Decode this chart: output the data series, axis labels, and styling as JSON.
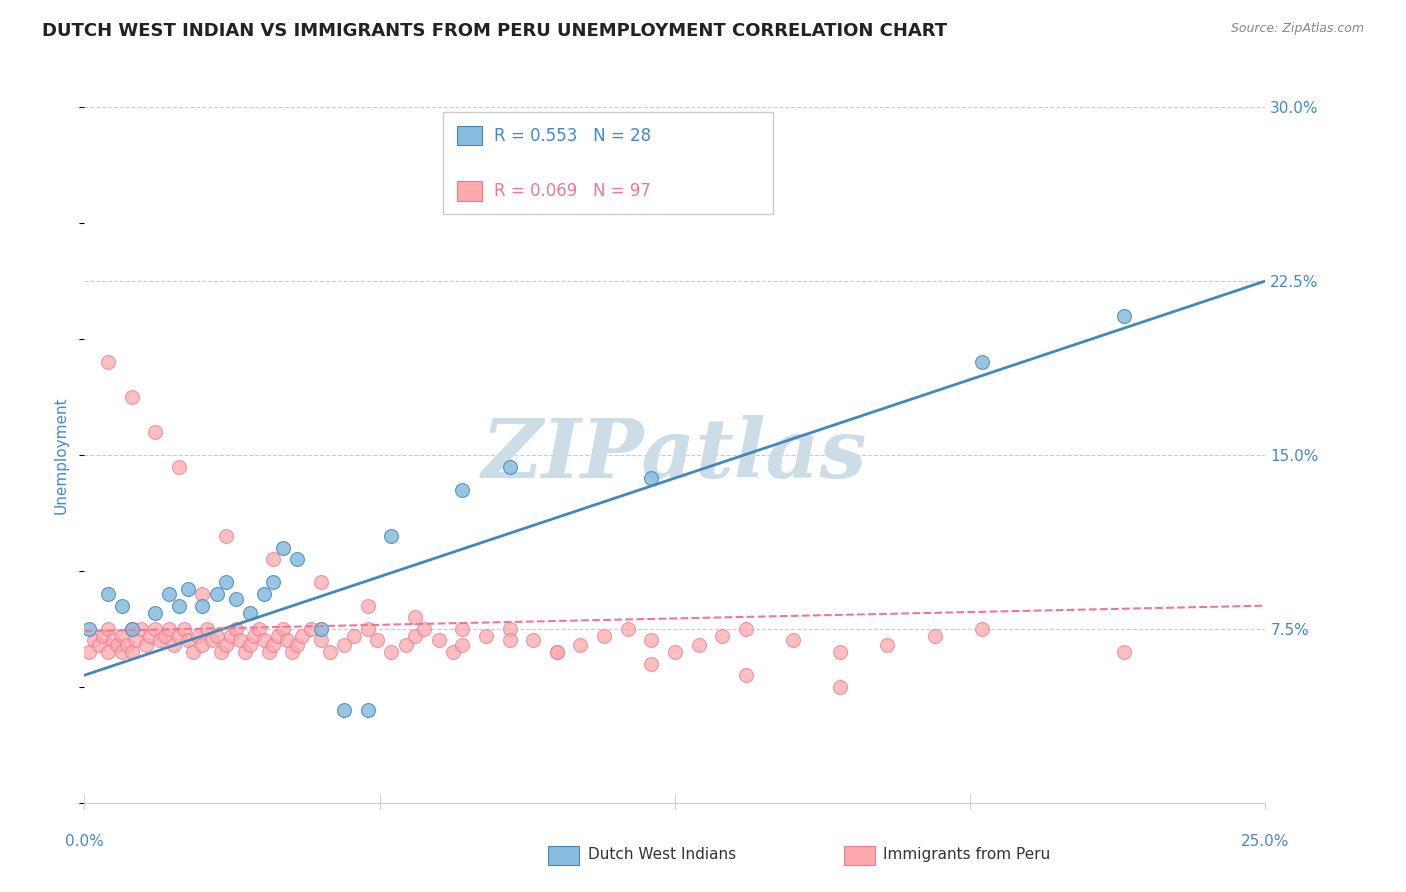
{
  "title": "DUTCH WEST INDIAN VS IMMIGRANTS FROM PERU UNEMPLOYMENT CORRELATION CHART",
  "source": "Source: ZipAtlas.com",
  "ylabel": "Unemployment",
  "yticks": [
    0.0,
    0.075,
    0.15,
    0.225,
    0.3
  ],
  "ytick_labels": [
    "",
    "7.5%",
    "15.0%",
    "22.5%",
    "30.0%"
  ],
  "xmin": 0.0,
  "xmax": 0.25,
  "ymin": 0.0,
  "ymax": 0.3,
  "color_blue": "#88BBDD",
  "color_pink": "#FFAAAA",
  "color_blue_dark": "#4488BB",
  "color_pink_dark": "#EE7799",
  "color_axis_label": "#4488CC",
  "watermark_color": "#CCDDE8",
  "grid_color": "#CCCCCC",
  "blue_scatter_x": [
    0.001,
    0.005,
    0.008,
    0.01,
    0.015,
    0.018,
    0.02,
    0.022,
    0.025,
    0.028,
    0.03,
    0.032,
    0.035,
    0.038,
    0.04,
    0.042,
    0.045,
    0.05,
    0.055,
    0.06,
    0.065,
    0.08,
    0.09,
    0.12,
    0.19,
    0.22
  ],
  "blue_scatter_y": [
    0.075,
    0.09,
    0.085,
    0.075,
    0.082,
    0.09,
    0.085,
    0.092,
    0.085,
    0.09,
    0.095,
    0.088,
    0.082,
    0.09,
    0.095,
    0.11,
    0.105,
    0.075,
    0.04,
    0.04,
    0.115,
    0.135,
    0.145,
    0.14,
    0.19,
    0.21
  ],
  "pink_scatter_x": [
    0.001,
    0.002,
    0.003,
    0.004,
    0.005,
    0.005,
    0.006,
    0.007,
    0.008,
    0.008,
    0.009,
    0.01,
    0.01,
    0.011,
    0.012,
    0.013,
    0.014,
    0.015,
    0.016,
    0.017,
    0.018,
    0.019,
    0.02,
    0.021,
    0.022,
    0.023,
    0.024,
    0.025,
    0.026,
    0.027,
    0.028,
    0.029,
    0.03,
    0.031,
    0.032,
    0.033,
    0.034,
    0.035,
    0.036,
    0.037,
    0.038,
    0.039,
    0.04,
    0.041,
    0.042,
    0.043,
    0.044,
    0.045,
    0.046,
    0.048,
    0.05,
    0.052,
    0.055,
    0.057,
    0.06,
    0.062,
    0.065,
    0.068,
    0.07,
    0.072,
    0.075,
    0.078,
    0.08,
    0.085,
    0.09,
    0.095,
    0.1,
    0.105,
    0.11,
    0.115,
    0.12,
    0.125,
    0.13,
    0.135,
    0.14,
    0.15,
    0.16,
    0.17,
    0.18,
    0.19,
    0.005,
    0.01,
    0.015,
    0.02,
    0.025,
    0.03,
    0.04,
    0.05,
    0.06,
    0.07,
    0.08,
    0.09,
    0.1,
    0.12,
    0.14,
    0.16,
    0.22
  ],
  "pink_scatter_y": [
    0.065,
    0.07,
    0.068,
    0.072,
    0.065,
    0.075,
    0.07,
    0.068,
    0.065,
    0.072,
    0.068,
    0.065,
    0.075,
    0.07,
    0.075,
    0.068,
    0.072,
    0.075,
    0.07,
    0.072,
    0.075,
    0.068,
    0.072,
    0.075,
    0.07,
    0.065,
    0.072,
    0.068,
    0.075,
    0.07,
    0.072,
    0.065,
    0.068,
    0.072,
    0.075,
    0.07,
    0.065,
    0.068,
    0.072,
    0.075,
    0.07,
    0.065,
    0.068,
    0.072,
    0.075,
    0.07,
    0.065,
    0.068,
    0.072,
    0.075,
    0.07,
    0.065,
    0.068,
    0.072,
    0.075,
    0.07,
    0.065,
    0.068,
    0.072,
    0.075,
    0.07,
    0.065,
    0.068,
    0.072,
    0.075,
    0.07,
    0.065,
    0.068,
    0.072,
    0.075,
    0.07,
    0.065,
    0.068,
    0.072,
    0.075,
    0.07,
    0.065,
    0.068,
    0.072,
    0.075,
    0.19,
    0.175,
    0.16,
    0.145,
    0.09,
    0.115,
    0.105,
    0.095,
    0.085,
    0.08,
    0.075,
    0.07,
    0.065,
    0.06,
    0.055,
    0.05,
    0.065
  ],
  "blue_line_x": [
    0.0,
    0.25
  ],
  "blue_line_y": [
    0.055,
    0.225
  ],
  "pink_line_x": [
    0.0,
    0.25
  ],
  "pink_line_y": [
    0.074,
    0.085
  ],
  "title_fontsize": 13,
  "label_fontsize": 11,
  "tick_fontsize": 11
}
